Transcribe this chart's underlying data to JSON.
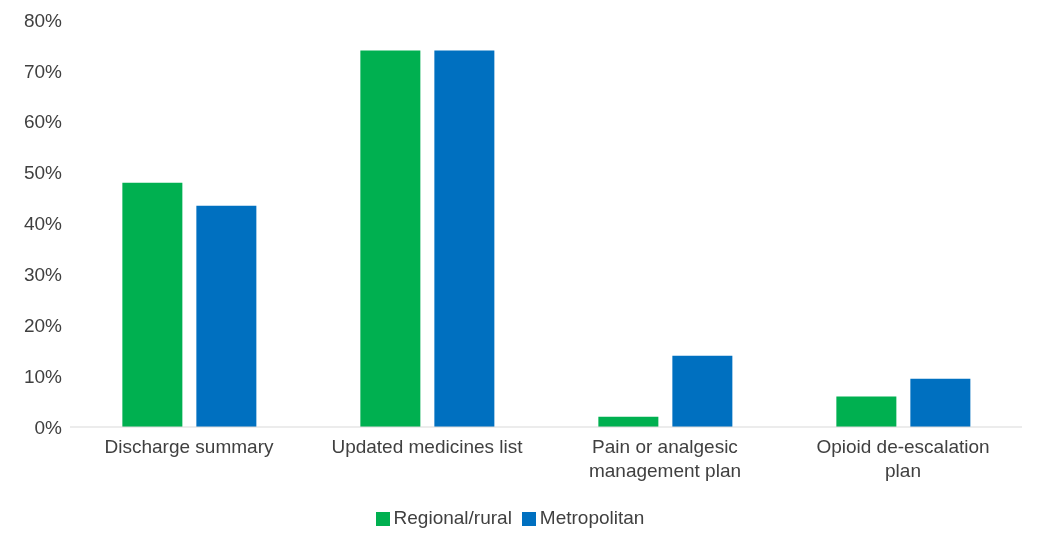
{
  "chart_data": {
    "type": "bar",
    "categories": [
      "Discharge summary",
      "Updated medicines list",
      "Pain or analgesic management plan",
      "Opioid de-escalation plan"
    ],
    "series": [
      {
        "name": "Regional/rural",
        "color": "#00b050",
        "values": [
          48,
          74,
          2,
          6
        ]
      },
      {
        "name": "Metropolitan",
        "color": "#0070c0",
        "values": [
          43.5,
          74,
          14,
          9.5
        ]
      }
    ],
    "ylim": [
      0,
      80
    ],
    "yticks": [
      {
        "value": 0,
        "label": "0%"
      },
      {
        "value": 10,
        "label": "10%"
      },
      {
        "value": 20,
        "label": "20%"
      },
      {
        "value": 30,
        "label": "30%"
      },
      {
        "value": 40,
        "label": "40%"
      },
      {
        "value": 50,
        "label": "50%"
      },
      {
        "value": 60,
        "label": "60%"
      },
      {
        "value": 70,
        "label": "70%"
      },
      {
        "value": 80,
        "label": "80%"
      }
    ],
    "grid": false,
    "legend": "bottom"
  }
}
